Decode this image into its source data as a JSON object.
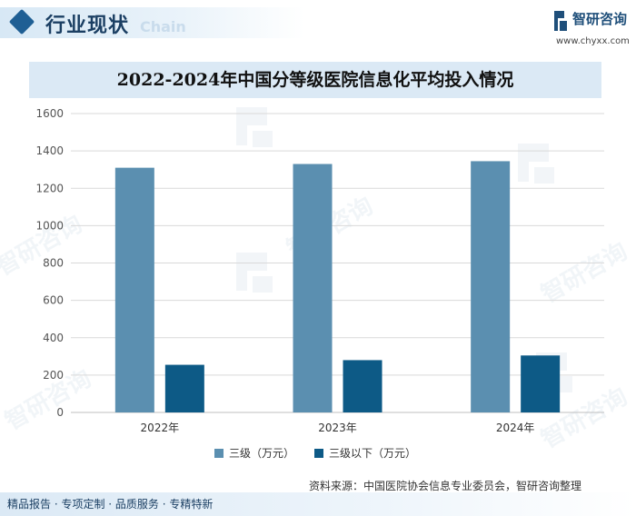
{
  "header": {
    "section_title": "行业现状",
    "ghost_word": "Chain",
    "logo_name": "智研咨询",
    "logo_url": "www.chyxx.com",
    "logo_icon": "chyxx-logo-icon"
  },
  "chart_data": {
    "type": "bar",
    "title": "2022-2024年中国分等级医院信息化平均投入情况",
    "categories": [
      "2022年",
      "2023年",
      "2024年"
    ],
    "series": [
      {
        "name": "三级（万元）",
        "values": [
          1310,
          1330,
          1345
        ],
        "color": "#5b8fb0"
      },
      {
        "name": "三级以下（万元）",
        "values": [
          255,
          280,
          305
        ],
        "color": "#0d5a86"
      }
    ],
    "ylim": [
      0,
      1600
    ],
    "yticks": [
      0,
      200,
      400,
      600,
      800,
      1000,
      1200,
      1400,
      1600
    ],
    "grid": true,
    "legend": "bottom",
    "xlabel": "",
    "ylabel": ""
  },
  "source_text": "资料来源：中国医院协会信息专业委员会，智研咨询整理",
  "footer_text": "精品报告 · 专项定制 · 品质服务 · 专精特新",
  "watermark": {
    "text": "智研咨询"
  }
}
